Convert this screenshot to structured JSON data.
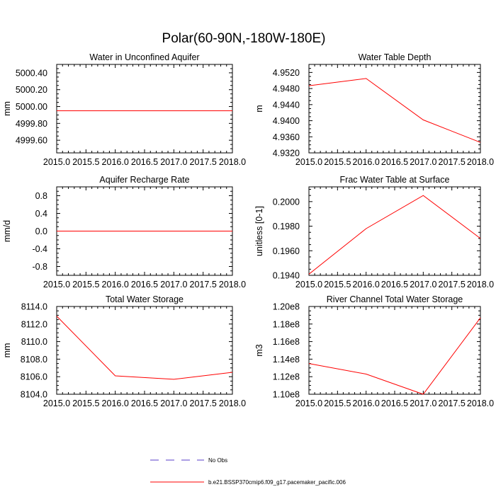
{
  "figure": {
    "title": "Polar(60-90N,-180W-180E)",
    "legend": [
      {
        "label": "No Obs",
        "color": "#5a3cc8",
        "dash": true
      },
      {
        "label": "b.e21.BSSP370cmip6.f09_g17.pacemaker_pacific.006",
        "color": "#ff0000",
        "dash": false
      }
    ]
  },
  "chart_data": [
    {
      "type": "line",
      "title": "Water in Unconfined Aquifer",
      "xlabel": "",
      "ylabel": "mm",
      "xlim": [
        2015.0,
        2018.0
      ],
      "ylim": [
        4999.45,
        5000.5
      ],
      "x": [
        2015,
        2016,
        2017,
        2018
      ],
      "series": [
        {
          "name": "b.e21.BSSP370cmip6.f09_g17.pacemaker_pacific.006",
          "values": [
            4999.95,
            4999.95,
            4999.95,
            4999.95
          ]
        }
      ],
      "xticks": [
        "2015.0",
        "2015.5",
        "2016.0",
        "2016.5",
        "2017.0",
        "2017.5",
        "2018.0"
      ],
      "yticks": [
        {
          "v": 4999.6,
          "label": "4999.60"
        },
        {
          "v": 4999.8,
          "label": "4999.80"
        },
        {
          "v": 5000.0,
          "label": "5000.00"
        },
        {
          "v": 5000.2,
          "label": "5000.20"
        },
        {
          "v": 5000.4,
          "label": "5000.40"
        }
      ]
    },
    {
      "type": "line",
      "title": "Water Table Depth",
      "xlabel": "",
      "ylabel": "m",
      "xlim": [
        2015.0,
        2018.0
      ],
      "ylim": [
        4.932,
        4.954
      ],
      "x": [
        2015,
        2016,
        2017,
        2018
      ],
      "series": [
        {
          "name": "b.e21.BSSP370cmip6.f09_g17.pacemaker_pacific.006",
          "values": [
            4.9487,
            4.9505,
            4.9402,
            4.9346
          ]
        }
      ],
      "xticks": [
        "2015.0",
        "2015.5",
        "2016.0",
        "2016.5",
        "2017.0",
        "2017.5",
        "2018.0"
      ],
      "yticks": [
        {
          "v": 4.932,
          "label": "4.9320"
        },
        {
          "v": 4.936,
          "label": "4.9360"
        },
        {
          "v": 4.94,
          "label": "4.9400"
        },
        {
          "v": 4.944,
          "label": "4.9440"
        },
        {
          "v": 4.948,
          "label": "4.9480"
        },
        {
          "v": 4.952,
          "label": "4.9520"
        }
      ]
    },
    {
      "type": "line",
      "title": "Aquifer Recharge Rate",
      "xlabel": "",
      "ylabel": "mm/d",
      "xlim": [
        2015.0,
        2018.0
      ],
      "ylim": [
        -1.0,
        1.0
      ],
      "x": [
        2015,
        2016,
        2017,
        2018
      ],
      "series": [
        {
          "name": "b.e21.BSSP370cmip6.f09_g17.pacemaker_pacific.006",
          "values": [
            0.0,
            0.0,
            0.0,
            0.0
          ]
        }
      ],
      "xticks": [
        "2015.0",
        "2015.5",
        "2016.0",
        "2016.5",
        "2017.0",
        "2017.5",
        "2018.0"
      ],
      "yticks": [
        {
          "v": -0.8,
          "label": "-0.8"
        },
        {
          "v": -0.4,
          "label": "-0.4"
        },
        {
          "v": 0.0,
          "label": "0.0"
        },
        {
          "v": 0.4,
          "label": "0.4"
        },
        {
          "v": 0.8,
          "label": "0.8"
        }
      ]
    },
    {
      "type": "line",
      "title": "Frac Water Table at Surface",
      "xlabel": "",
      "ylabel": "unitless [0-1]",
      "xlim": [
        2015.0,
        2018.0
      ],
      "ylim": [
        0.194,
        0.2012
      ],
      "x": [
        2015,
        2016,
        2017,
        2018
      ],
      "series": [
        {
          "name": "b.e21.BSSP370cmip6.f09_g17.pacemaker_pacific.006",
          "values": [
            0.1941,
            0.1978,
            0.2005,
            0.197
          ]
        }
      ],
      "xticks": [
        "2015.0",
        "2015.5",
        "2016.0",
        "2016.5",
        "2017.0",
        "2017.5",
        "2018.0"
      ],
      "yticks": [
        {
          "v": 0.194,
          "label": "0.1940"
        },
        {
          "v": 0.196,
          "label": "0.1960"
        },
        {
          "v": 0.198,
          "label": "0.1980"
        },
        {
          "v": 0.2,
          "label": "0.2000"
        }
      ]
    },
    {
      "type": "line",
      "title": "Total Water Storage",
      "xlabel": "",
      "ylabel": "mm",
      "xlim": [
        2015.0,
        2018.0
      ],
      "ylim": [
        8104.0,
        8114.0
      ],
      "x": [
        2015,
        2016,
        2017,
        2018
      ],
      "series": [
        {
          "name": "b.e21.BSSP370cmip6.f09_g17.pacemaker_pacific.006",
          "values": [
            8112.9,
            8106.1,
            8105.7,
            8106.5
          ]
        }
      ],
      "xticks": [
        "2015.0",
        "2015.5",
        "2016.0",
        "2016.5",
        "2017.0",
        "2017.5",
        "2018.0"
      ],
      "yticks": [
        {
          "v": 8104.0,
          "label": "8104.0"
        },
        {
          "v": 8106.0,
          "label": "8106.0"
        },
        {
          "v": 8108.0,
          "label": "8108.0"
        },
        {
          "v": 8110.0,
          "label": "8110.0"
        },
        {
          "v": 8112.0,
          "label": "8112.0"
        },
        {
          "v": 8114.0,
          "label": "8114.0"
        }
      ]
    },
    {
      "type": "line",
      "title": "River Channel Total Water Storage",
      "xlabel": "",
      "ylabel": "m3",
      "xlim": [
        2015.0,
        2018.0
      ],
      "ylim": [
        110000000.0,
        120000000.0
      ],
      "x": [
        2015,
        2016,
        2017,
        2018
      ],
      "series": [
        {
          "name": "b.e21.BSSP370cmip6.f09_g17.pacemaker_pacific.006",
          "values": [
            113500000,
            112300000,
            110000000,
            118700000
          ]
        }
      ],
      "xticks": [
        "2015.0",
        "2015.5",
        "2016.0",
        "2016.5",
        "2017.0",
        "2017.5",
        "2018.0"
      ],
      "yticks": [
        {
          "v": 110000000,
          "label": "1.10e8"
        },
        {
          "v": 112000000,
          "label": "1.12e8"
        },
        {
          "v": 114000000,
          "label": "1.14e8"
        },
        {
          "v": 116000000,
          "label": "1.16e8"
        },
        {
          "v": 118000000,
          "label": "1.18e8"
        },
        {
          "v": 120000000,
          "label": "1.20e8"
        }
      ]
    }
  ]
}
